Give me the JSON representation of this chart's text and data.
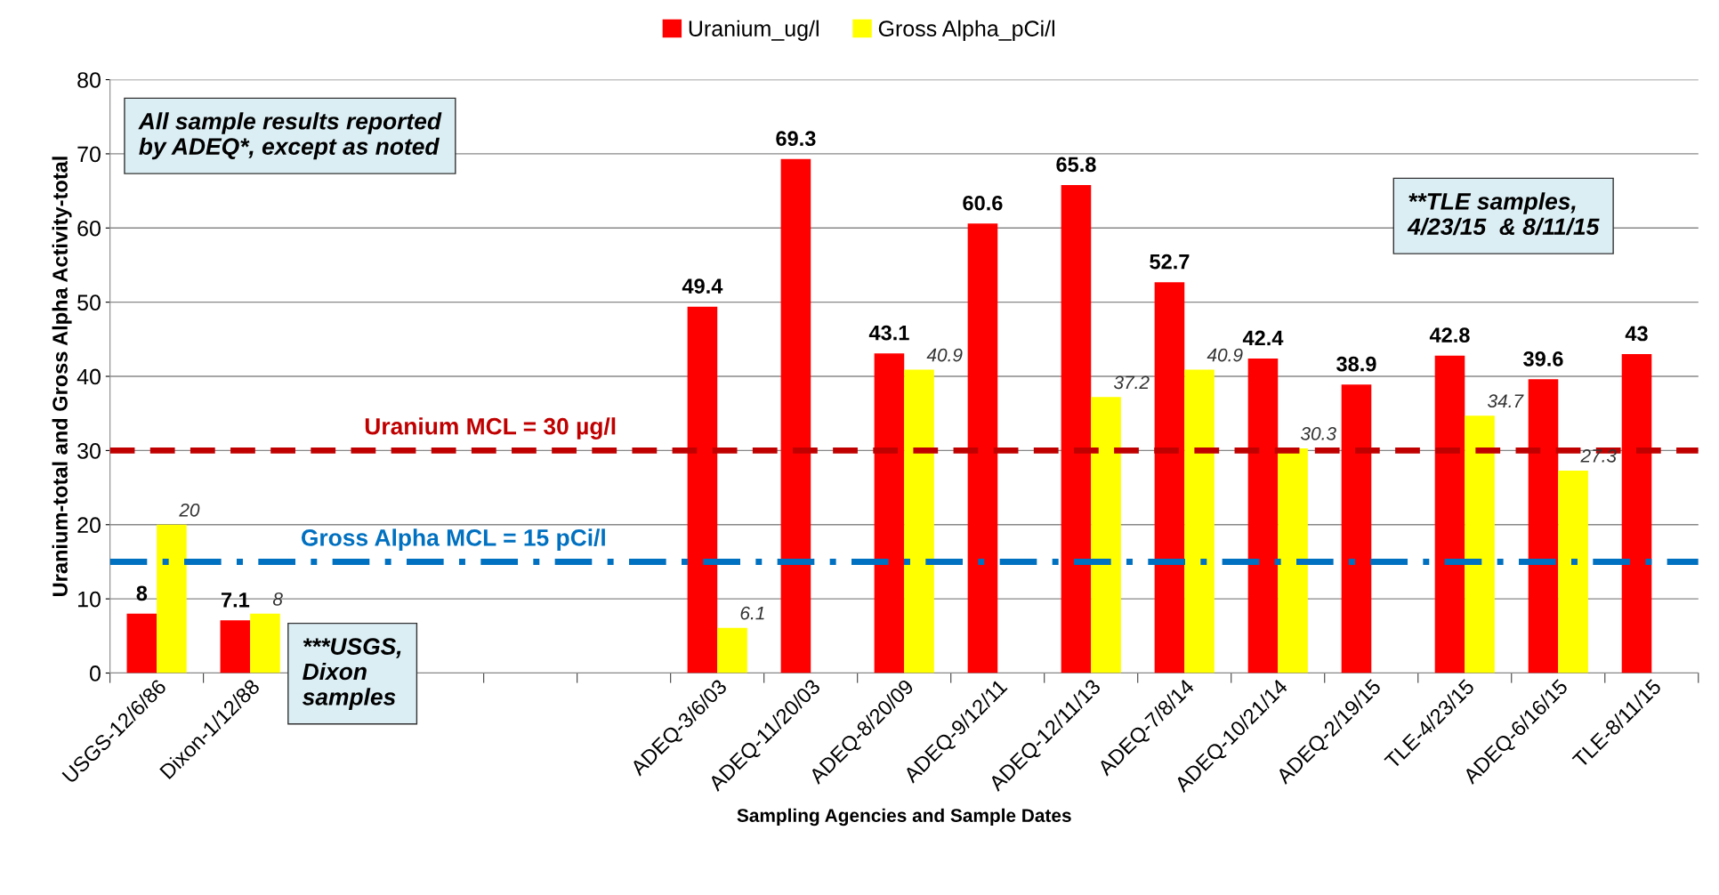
{
  "chart_data": {
    "type": "bar",
    "xlabel": "Sampling Agencies and Sample Dates",
    "ylabel": "Uranium-total and Gross Alpha Activity-total",
    "categories": [
      "USGS-12/6/86",
      "Dixon-1/12/88",
      null,
      null,
      null,
      null,
      "ADEQ-3/6/03",
      "ADEQ-11/20/03",
      "ADEQ-8/20/09",
      "ADEQ-9/12/11",
      "ADEQ-12/11/13",
      "ADEQ-7/8/14",
      "ADEQ-10/21/14",
      "ADEQ-2/19/15",
      "TLE-4/23/15",
      "ADEQ-6/16/15",
      "TLE-8/11/15"
    ],
    "series": [
      {
        "name": "Uranium_ug/l",
        "color": "#ff0000",
        "values": [
          8,
          7.1,
          null,
          null,
          null,
          null,
          49.4,
          69.3,
          43.1,
          60.6,
          65.8,
          52.7,
          42.4,
          38.9,
          42.8,
          39.6,
          43
        ]
      },
      {
        "name": "Gross Alpha_pCi/l",
        "color": "#ffff00",
        "values": [
          20,
          8,
          null,
          null,
          null,
          null,
          6.1,
          null,
          40.9,
          null,
          37.2,
          40.9,
          30.3,
          null,
          34.7,
          27.3,
          null
        ]
      }
    ],
    "ylim": [
      0,
      80
    ],
    "yticks": [
      0,
      10,
      20,
      30,
      40,
      50,
      60,
      70,
      80
    ],
    "grid": "y",
    "legend": "top",
    "data_labels": true,
    "ref_lines": [
      {
        "axis": "y",
        "value": 30,
        "label": "Uranium MCL = 30 µg/l",
        "color": "#c00000",
        "line_style": "dashed"
      },
      {
        "axis": "y",
        "value": 15,
        "label": "Gross Alpha MCL = 15 pCi/l",
        "color": "#0070c0",
        "line_style": "dashdot"
      }
    ],
    "annotations": [
      "All sample results reported\nby ADEQ*, except as noted",
      "**TLE samples,\n4/23/15  & 8/11/15",
      "***USGS,\nDixon\nsamples"
    ]
  }
}
